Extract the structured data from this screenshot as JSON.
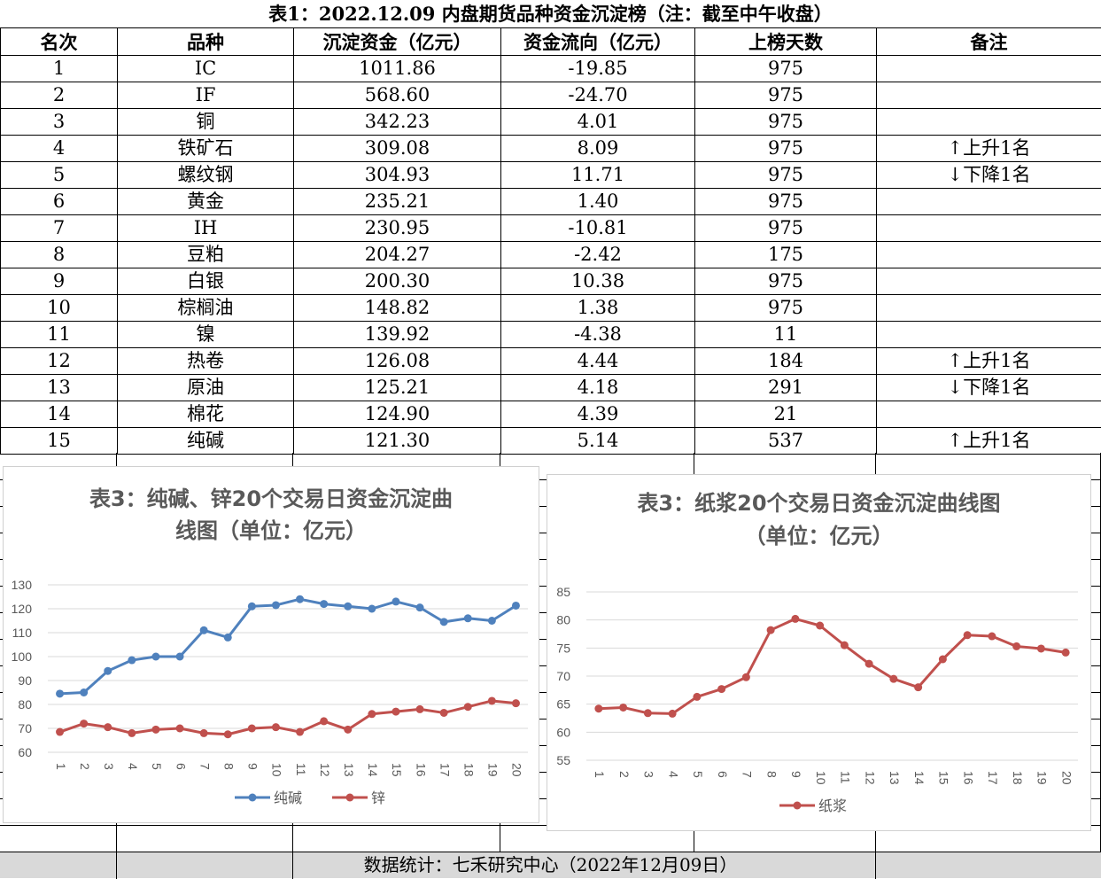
{
  "table": {
    "title": "表1：2022.12.09 内盘期货品种资金沉淀榜（注：截至中午收盘）",
    "headers": [
      "名次",
      "品种",
      "沉淀资金（亿元）",
      "资金流向（亿元）",
      "上榜天数",
      "备注"
    ],
    "rows": [
      {
        "rank": "1",
        "name": "IC",
        "amount": "1011.86",
        "flow": "-19.85",
        "days": "975",
        "note": ""
      },
      {
        "rank": "2",
        "name": "IF",
        "amount": "568.60",
        "flow": "-24.70",
        "days": "975",
        "note": ""
      },
      {
        "rank": "3",
        "name": "铜",
        "amount": "342.23",
        "flow": "4.01",
        "days": "975",
        "note": ""
      },
      {
        "rank": "4",
        "name": "铁矿石",
        "amount": "309.08",
        "flow": "8.09",
        "days": "975",
        "note": "↑上升1名"
      },
      {
        "rank": "5",
        "name": "螺纹钢",
        "amount": "304.93",
        "flow": "11.71",
        "days": "975",
        "note": "↓下降1名"
      },
      {
        "rank": "6",
        "name": "黄金",
        "amount": "235.21",
        "flow": "1.40",
        "days": "975",
        "note": ""
      },
      {
        "rank": "7",
        "name": "IH",
        "amount": "230.95",
        "flow": "-10.81",
        "days": "975",
        "note": ""
      },
      {
        "rank": "8",
        "name": "豆粕",
        "amount": "204.27",
        "flow": "-2.42",
        "days": "175",
        "note": ""
      },
      {
        "rank": "9",
        "name": "白银",
        "amount": "200.30",
        "flow": "10.38",
        "days": "975",
        "note": ""
      },
      {
        "rank": "10",
        "name": "棕榈油",
        "amount": "148.82",
        "flow": "1.38",
        "days": "975",
        "note": ""
      },
      {
        "rank": "11",
        "name": "镍",
        "amount": "139.92",
        "flow": "-4.38",
        "days": "11",
        "note": ""
      },
      {
        "rank": "12",
        "name": "热卷",
        "amount": "126.08",
        "flow": "4.44",
        "days": "184",
        "note": "↑上升1名"
      },
      {
        "rank": "13",
        "name": "原油",
        "amount": "125.21",
        "flow": "4.18",
        "days": "291",
        "note": "↓下降1名"
      },
      {
        "rank": "14",
        "name": "棉花",
        "amount": "124.90",
        "flow": "4.39",
        "days": "21",
        "note": ""
      },
      {
        "rank": "15",
        "name": "纯碱",
        "amount": "121.30",
        "flow": "5.14",
        "days": "537",
        "note": "↑上升1名"
      }
    ]
  },
  "footer": {
    "text": "数据统计：七禾研究中心（2022年12月09日）"
  },
  "chart_data": [
    {
      "type": "line",
      "title_line1": "表3：纯碱、锌20个交易日资金沉淀曲",
      "title_line2": "线图（单位：亿元）",
      "x": [
        "1",
        "2",
        "3",
        "4",
        "5",
        "6",
        "7",
        "8",
        "9",
        "10",
        "11",
        "12",
        "13",
        "14",
        "15",
        "16",
        "17",
        "18",
        "19",
        "20"
      ],
      "ylim": [
        60,
        130
      ],
      "yticks": [
        60,
        70,
        80,
        90,
        100,
        110,
        120,
        130
      ],
      "grid": true,
      "legend_position": "bottom",
      "series": [
        {
          "name": "纯碱",
          "color": "#4f81bd",
          "values": [
            84.5,
            85,
            94,
            98.5,
            100,
            100,
            111,
            108,
            121,
            121.5,
            124,
            122,
            121,
            120,
            123,
            120.5,
            114.5,
            116,
            115,
            121.3
          ]
        },
        {
          "name": "锌",
          "color": "#c0504d",
          "values": [
            68.5,
            72,
            70.5,
            68,
            69.5,
            70,
            68,
            67.5,
            70,
            70.5,
            68.5,
            73,
            69.5,
            76,
            77,
            78,
            76.5,
            79,
            81.5,
            80.5
          ]
        }
      ]
    },
    {
      "type": "line",
      "title_line1": "表3：纸浆20个交易日资金沉淀曲线图",
      "title_line2": "（单位：亿元）",
      "x": [
        "1",
        "2",
        "3",
        "4",
        "5",
        "6",
        "7",
        "8",
        "9",
        "10",
        "11",
        "12",
        "13",
        "14",
        "15",
        "16",
        "17",
        "18",
        "19",
        "20"
      ],
      "ylim": [
        55,
        85
      ],
      "yticks": [
        55,
        60,
        65,
        70,
        75,
        80,
        85
      ],
      "grid": true,
      "legend_position": "bottom",
      "series": [
        {
          "name": "纸浆",
          "color": "#c0504d",
          "values": [
            64.2,
            64.4,
            63.4,
            63.3,
            66.3,
            67.7,
            69.8,
            78.2,
            80.2,
            79,
            75.5,
            72.2,
            69.5,
            68,
            73,
            77.3,
            77.1,
            75.3,
            74.9,
            74.2
          ]
        }
      ]
    }
  ]
}
